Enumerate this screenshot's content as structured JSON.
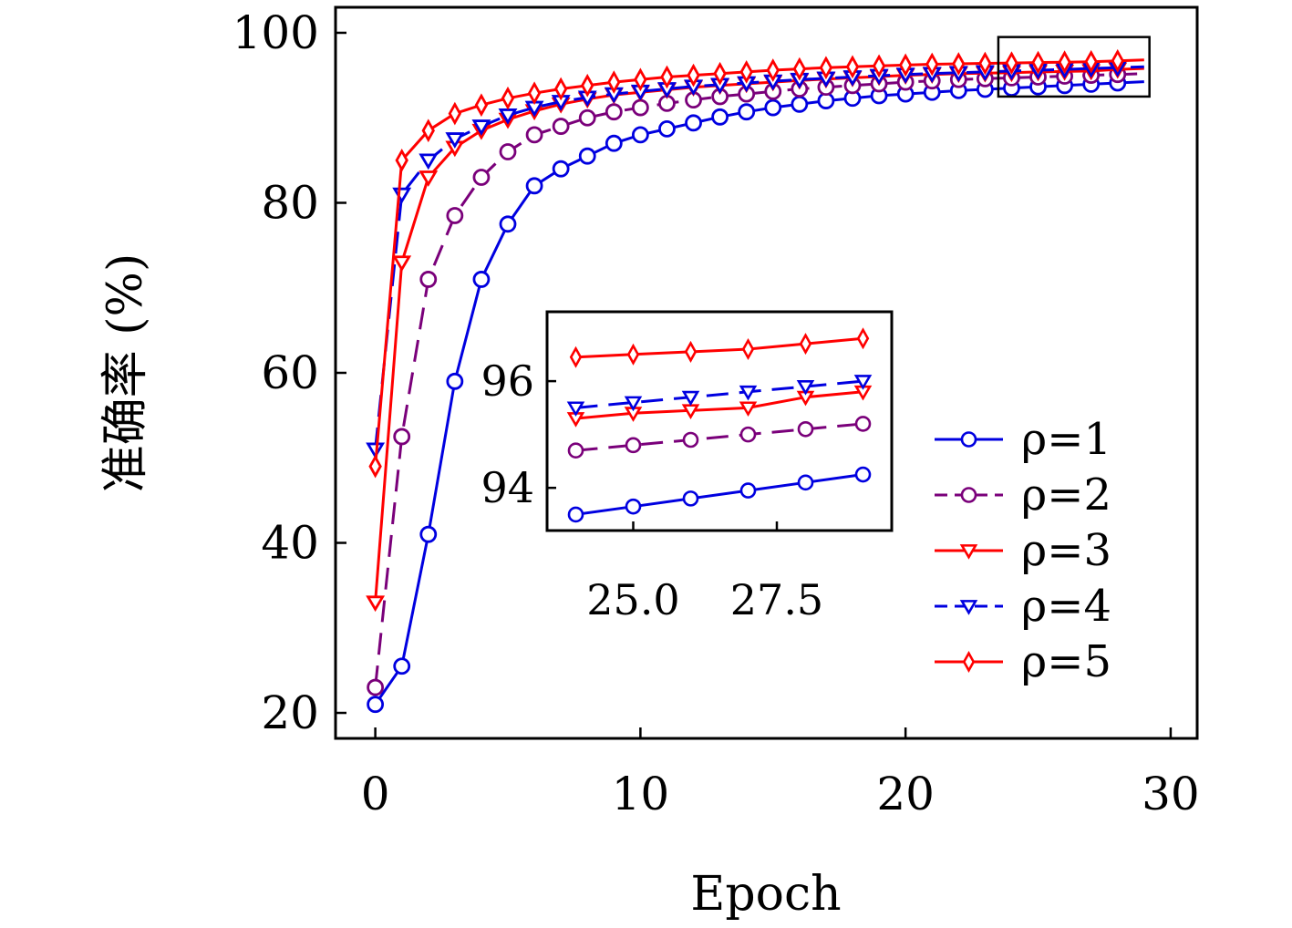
{
  "chart_data": {
    "type": "line",
    "xlabel": "Epoch",
    "ylabel": "准确率 (%)",
    "xlim": [
      -1.5,
      31
    ],
    "ylim": [
      17,
      103
    ],
    "xticks": [
      0,
      10,
      20,
      30
    ],
    "yticks": [
      20,
      40,
      60,
      80,
      100
    ],
    "grid": false,
    "legend_position": "lower-right",
    "series": [
      {
        "name": "ρ=1",
        "color": "#0000e0",
        "dash": "solid",
        "marker": "circle",
        "x": [
          0,
          1,
          2,
          3,
          4,
          5,
          6,
          7,
          8,
          9,
          10,
          11,
          12,
          13,
          14,
          15,
          16,
          17,
          18,
          19,
          20,
          21,
          22,
          23,
          24,
          25,
          26,
          27,
          28,
          29
        ],
        "y": [
          21,
          25.5,
          41,
          59,
          71,
          77.5,
          82,
          84,
          85.5,
          87,
          88,
          88.7,
          89.4,
          90.1,
          90.7,
          91.2,
          91.6,
          92.0,
          92.3,
          92.6,
          92.8,
          93.0,
          93.2,
          93.35,
          93.5,
          93.65,
          93.8,
          93.95,
          94.1,
          94.25
        ]
      },
      {
        "name": "ρ=2",
        "color": "#7a007a",
        "dash": "dashed",
        "marker": "circle",
        "x": [
          0,
          1,
          2,
          3,
          4,
          5,
          6,
          7,
          8,
          9,
          10,
          11,
          12,
          13,
          14,
          15,
          16,
          17,
          18,
          19,
          20,
          21,
          22,
          23,
          24,
          25,
          26,
          27,
          28,
          29
        ],
        "y": [
          23,
          52.5,
          71,
          78.5,
          83,
          86,
          88,
          89,
          90,
          90.7,
          91.2,
          91.7,
          92.1,
          92.5,
          92.8,
          93.1,
          93.4,
          93.6,
          93.8,
          94.0,
          94.2,
          94.35,
          94.5,
          94.6,
          94.7,
          94.8,
          94.9,
          95.0,
          95.1,
          95.2
        ]
      },
      {
        "name": "ρ=3",
        "color": "#ff0000",
        "dash": "solid",
        "marker": "triangle-down",
        "x": [
          0,
          1,
          2,
          3,
          4,
          5,
          6,
          7,
          8,
          9,
          10,
          11,
          12,
          13,
          14,
          15,
          16,
          17,
          18,
          19,
          20,
          21,
          22,
          23,
          24,
          25,
          26,
          27,
          28,
          29
        ],
        "y": [
          33,
          73,
          83,
          86.5,
          88.5,
          89.8,
          90.8,
          91.6,
          92.2,
          92.7,
          93.0,
          93.3,
          93.6,
          93.8,
          94.0,
          94.2,
          94.4,
          94.55,
          94.7,
          94.85,
          95.0,
          95.1,
          95.2,
          95.25,
          95.3,
          95.4,
          95.45,
          95.5,
          95.7,
          95.8
        ]
      },
      {
        "name": "ρ=4",
        "color": "#0000e0",
        "dash": "dashed",
        "marker": "triangle-down",
        "x": [
          0,
          1,
          2,
          3,
          4,
          5,
          6,
          7,
          8,
          9,
          10,
          11,
          12,
          13,
          14,
          15,
          16,
          17,
          18,
          19,
          20,
          21,
          22,
          23,
          24,
          25,
          26,
          27,
          28,
          29
        ],
        "y": [
          51,
          81,
          85,
          87.5,
          89,
          90.3,
          91.2,
          91.9,
          92.4,
          92.8,
          93.1,
          93.4,
          93.7,
          93.9,
          94.1,
          94.3,
          94.5,
          94.65,
          94.8,
          94.95,
          95.1,
          95.2,
          95.3,
          95.4,
          95.5,
          95.6,
          95.7,
          95.8,
          95.9,
          96.0
        ]
      },
      {
        "name": "ρ=5",
        "color": "#ff0000",
        "dash": "solid",
        "marker": "diamond",
        "x": [
          0,
          1,
          2,
          3,
          4,
          5,
          6,
          7,
          8,
          9,
          10,
          11,
          12,
          13,
          14,
          15,
          16,
          17,
          18,
          19,
          20,
          21,
          22,
          23,
          24,
          25,
          26,
          27,
          28,
          29
        ],
        "y": [
          49,
          85,
          88.5,
          90.5,
          91.5,
          92.3,
          92.9,
          93.4,
          93.8,
          94.2,
          94.5,
          94.8,
          95.0,
          95.2,
          95.4,
          95.6,
          95.75,
          95.9,
          96.0,
          96.1,
          96.2,
          96.3,
          96.35,
          96.4,
          96.45,
          96.5,
          96.55,
          96.6,
          96.7,
          96.8
        ]
      }
    ],
    "inset": {
      "xlim": [
        23.5,
        29.5
      ],
      "ylim": [
        93.2,
        97.3
      ],
      "xticks": [
        25.0,
        27.5
      ],
      "xtick_labels": [
        "25.0",
        "27.5"
      ],
      "yticks": [
        94,
        96
      ],
      "ytick_labels": [
        "94",
        "96"
      ],
      "zoom_region": {
        "x": [
          23.5,
          29.2
        ],
        "y": [
          92.5,
          99.5
        ]
      }
    }
  }
}
